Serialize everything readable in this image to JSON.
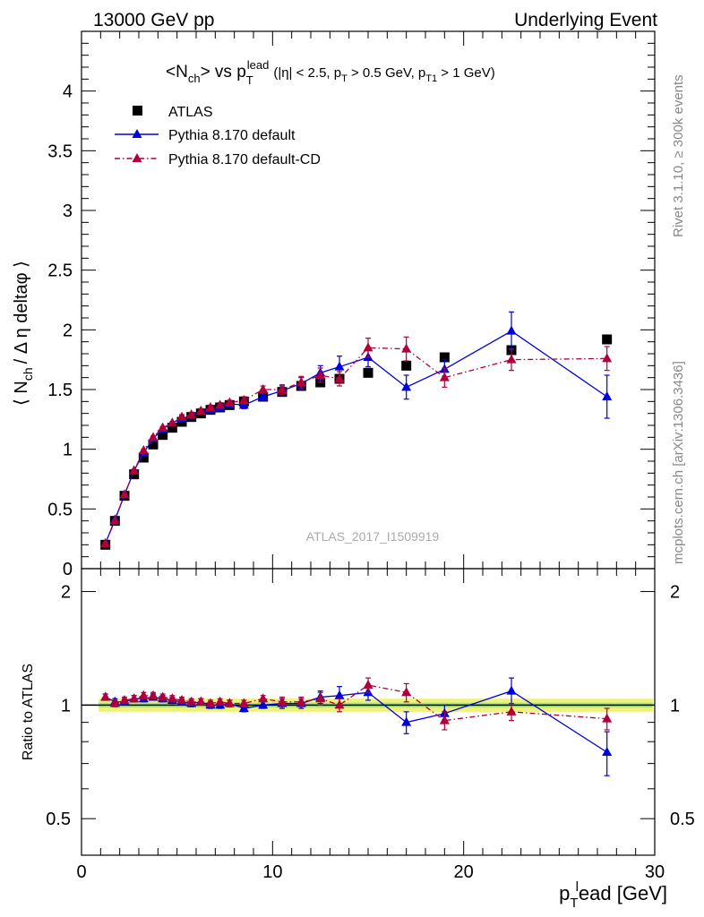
{
  "header": {
    "left": "13000 GeV pp",
    "right": "Underlying Event"
  },
  "side_text": {
    "rivet": "Rivet 3.1.10, ≥ 300k events",
    "mcplots": "mcplots.cern.ch [arXiv:1306.3436]"
  },
  "watermark": "ATLAS_2017_I1509919",
  "chart_data": [
    {
      "type": "scatter",
      "panel": "main",
      "title": "<N_ch> vs p_T^lead",
      "title_parts": {
        "main": "<N",
        "sub1": "ch",
        "mid": "> vs p",
        "sub2": "T",
        "sup": "lead",
        "cuts": "(|η| < 2.5, p",
        "cuts_sub1": "T",
        "cuts_mid": " > 0.5 GeV, p",
        "cuts_sub2": "T1",
        "cuts_end": " > 1 GeV)"
      },
      "ylabel": "⟨ N_ch / Δ η deltaφ ⟩",
      "ylabel_parts": {
        "a": "⟨ N",
        "sub": "ch",
        "b": "/ Δ η deltaφ ⟩"
      },
      "xlim": [
        0,
        30
      ],
      "ylim": [
        0,
        4.5
      ],
      "yticks": [
        "0",
        "0.5",
        "1",
        "1.5",
        "2",
        "2.5",
        "3",
        "3.5",
        "4"
      ],
      "ytick_values": [
        0,
        0.5,
        1,
        1.5,
        2,
        2.5,
        3,
        3.5,
        4
      ],
      "legend_position": "top-left",
      "x": [
        1.25,
        1.75,
        2.25,
        2.75,
        3.25,
        3.75,
        4.25,
        4.75,
        5.25,
        5.75,
        6.25,
        6.75,
        7.25,
        7.75,
        8.5,
        9.5,
        10.5,
        11.5,
        12.5,
        13.5,
        15.0,
        17.0,
        19.0,
        22.5,
        27.5
      ],
      "series": [
        {
          "name": "ATLAS",
          "marker": "square",
          "color": "#000000",
          "values": [
            0.2,
            0.4,
            0.61,
            0.79,
            0.93,
            1.04,
            1.12,
            1.18,
            1.23,
            1.27,
            1.3,
            1.33,
            1.35,
            1.37,
            1.4,
            1.44,
            1.48,
            1.53,
            1.56,
            1.59,
            1.64,
            1.7,
            1.77,
            1.83,
            1.92
          ]
        },
        {
          "name": "Pythia 8.170 default",
          "marker": "triangle",
          "line": "solid",
          "color": "#0000dd",
          "values": [
            0.21,
            0.41,
            0.62,
            0.82,
            0.97,
            1.09,
            1.17,
            1.22,
            1.26,
            1.28,
            1.32,
            1.33,
            1.35,
            1.38,
            1.37,
            1.44,
            1.49,
            1.55,
            1.64,
            1.69,
            1.77,
            1.52,
            1.67,
            1.99,
            1.44
          ],
          "errors": [
            0.01,
            0.01,
            0.01,
            0.01,
            0.01,
            0.01,
            0.01,
            0.01,
            0.02,
            0.02,
            0.02,
            0.02,
            0.02,
            0.02,
            0.03,
            0.03,
            0.04,
            0.05,
            0.06,
            0.09,
            0.08,
            0.1,
            0.08,
            0.16,
            0.18
          ]
        },
        {
          "name": "Pythia 8.170 default-CD",
          "marker": "triangle",
          "line": "dashdot",
          "color": "#b0003a",
          "values": [
            0.21,
            0.4,
            0.62,
            0.82,
            0.99,
            1.1,
            1.18,
            1.22,
            1.27,
            1.29,
            1.32,
            1.35,
            1.37,
            1.39,
            1.41,
            1.5,
            1.5,
            1.56,
            1.62,
            1.59,
            1.85,
            1.84,
            1.6,
            1.75,
            1.76
          ],
          "errors": [
            0.01,
            0.01,
            0.01,
            0.01,
            0.01,
            0.01,
            0.01,
            0.01,
            0.02,
            0.02,
            0.02,
            0.02,
            0.02,
            0.02,
            0.03,
            0.03,
            0.04,
            0.05,
            0.06,
            0.06,
            0.08,
            0.1,
            0.08,
            0.09,
            0.1
          ]
        }
      ]
    },
    {
      "type": "scatter",
      "panel": "ratio",
      "xlabel": "p_T^lead [GeV]",
      "xlabel_parts": {
        "a": "p",
        "sub": "T",
        "sup": "l",
        "b": "ead [GeV]"
      },
      "ylabel": "Ratio to ATLAS",
      "xlim": [
        0,
        30
      ],
      "ylim": [
        0.4,
        2.3
      ],
      "log_y": true,
      "yticks": [
        "0.5",
        "1",
        "2"
      ],
      "ytick_values": [
        0.5,
        1,
        2
      ],
      "xticks": [
        "0",
        "10",
        "20",
        "30"
      ],
      "xtick_values": [
        0,
        10,
        20,
        30
      ],
      "band_color": "#eef27a",
      "band_inner_color": "#a8e68a",
      "x": [
        1.25,
        1.75,
        2.25,
        2.75,
        3.25,
        3.75,
        4.25,
        4.75,
        5.25,
        5.75,
        6.25,
        6.75,
        7.25,
        7.75,
        8.5,
        9.5,
        10.5,
        11.5,
        12.5,
        13.5,
        15.0,
        17.0,
        19.0,
        22.5,
        27.5
      ],
      "series": [
        {
          "name": "Pythia 8.170 default",
          "color": "#0000dd",
          "line": "solid",
          "values": [
            1.05,
            1.02,
            1.02,
            1.04,
            1.04,
            1.05,
            1.04,
            1.03,
            1.02,
            1.01,
            1.02,
            1.0,
            1.0,
            1.01,
            0.98,
            1.0,
            1.01,
            1.01,
            1.05,
            1.06,
            1.08,
            0.9,
            0.95,
            1.09,
            0.75
          ],
          "errors": [
            0.02,
            0.02,
            0.02,
            0.02,
            0.02,
            0.02,
            0.02,
            0.02,
            0.02,
            0.02,
            0.02,
            0.02,
            0.02,
            0.02,
            0.02,
            0.02,
            0.03,
            0.03,
            0.04,
            0.06,
            0.05,
            0.06,
            0.05,
            0.09,
            0.1
          ]
        },
        {
          "name": "Pythia 8.170 default-CD",
          "color": "#b0003a",
          "line": "dashdot",
          "values": [
            1.05,
            1.01,
            1.03,
            1.04,
            1.06,
            1.06,
            1.05,
            1.04,
            1.03,
            1.02,
            1.02,
            1.01,
            1.02,
            1.01,
            1.01,
            1.04,
            1.02,
            1.02,
            1.04,
            1.0,
            1.13,
            1.08,
            0.91,
            0.96,
            0.92
          ],
          "errors": [
            0.02,
            0.02,
            0.02,
            0.02,
            0.02,
            0.02,
            0.02,
            0.02,
            0.02,
            0.02,
            0.02,
            0.02,
            0.02,
            0.02,
            0.02,
            0.02,
            0.03,
            0.03,
            0.04,
            0.04,
            0.05,
            0.06,
            0.05,
            0.05,
            0.06
          ]
        }
      ]
    }
  ]
}
